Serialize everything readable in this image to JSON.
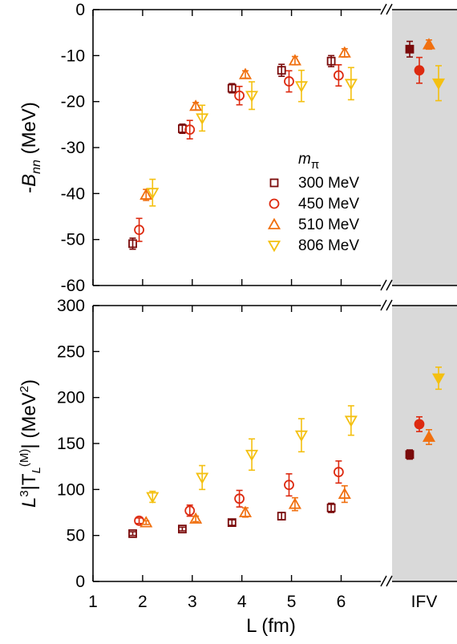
{
  "chart_data": [
    {
      "type": "scatter",
      "panel": "top",
      "ylabel": "-B_nn (MeV)",
      "ylabel_parts": {
        "prefix": "-",
        "base": "B",
        "sub": "nn",
        "suffix": " (MeV)"
      },
      "xlabel": "L (fm)",
      "xlim": [
        1,
        6.8
      ],
      "ylim": [
        -60,
        0
      ],
      "y_ticks": [
        0,
        -10,
        -20,
        -30,
        -40,
        -50,
        -60
      ],
      "x_ticks": [
        1,
        2,
        3,
        4,
        5,
        6
      ],
      "extra_category": "IFV",
      "legend_title": "m_π",
      "legend_title_parts": {
        "base": "m",
        "sub": "π"
      },
      "legend_placement": "center-right",
      "series": [
        {
          "name": "300 MeV",
          "marker": "square",
          "color": "#7a0a0a",
          "points": [
            {
              "x": 1.8,
              "y": -50.9,
              "err": 1.2
            },
            {
              "x": 2.8,
              "y": -25.9,
              "err": 1.0
            },
            {
              "x": 3.8,
              "y": -17.1,
              "err": 1.0
            },
            {
              "x": 4.8,
              "y": -13.2,
              "err": 1.3
            },
            {
              "x": 5.8,
              "y": -11.2,
              "err": 1.2
            }
          ],
          "ifv": {
            "y": -8.6,
            "err": 1.7
          }
        },
        {
          "name": "450 MeV",
          "marker": "circle",
          "color": "#dd2a10",
          "points": [
            {
              "x": 1.93,
              "y": -47.9,
              "err": 2.5
            },
            {
              "x": 2.95,
              "y": -26.1,
              "err": 2.0
            },
            {
              "x": 3.95,
              "y": -18.7,
              "err": 2.0
            },
            {
              "x": 4.95,
              "y": -15.6,
              "err": 2.3
            },
            {
              "x": 5.95,
              "y": -14.3,
              "err": 2.3
            }
          ],
          "ifv": {
            "y": -13.2,
            "err": 2.8
          }
        },
        {
          "name": "510 MeV",
          "marker": "triangle-up",
          "color": "#f07010",
          "points": [
            {
              "x": 2.07,
              "y": -40.3,
              "err": 1.2
            },
            {
              "x": 3.07,
              "y": -21.0,
              "err": 0.8
            },
            {
              "x": 4.07,
              "y": -14.1,
              "err": 0.8
            },
            {
              "x": 5.07,
              "y": -11.1,
              "err": 0.9
            },
            {
              "x": 6.07,
              "y": -9.4,
              "err": 0.9
            }
          ],
          "ifv": {
            "y": -7.6,
            "err": 1.0
          }
        },
        {
          "name": "806 MeV",
          "marker": "triangle-down",
          "color": "#f4c010",
          "points": [
            {
              "x": 2.2,
              "y": -39.8,
              "err": 2.9
            },
            {
              "x": 3.2,
              "y": -23.6,
              "err": 2.8
            },
            {
              "x": 4.2,
              "y": -18.7,
              "err": 3.0
            },
            {
              "x": 5.2,
              "y": -16.6,
              "err": 3.4
            },
            {
              "x": 6.2,
              "y": -16.1,
              "err": 3.5
            }
          ],
          "ifv": {
            "y": -16.0,
            "err": 3.8
          }
        }
      ]
    },
    {
      "type": "scatter",
      "panel": "bottom",
      "ylabel": "L^3|T_L^(M)| (MeV^2)",
      "ylabel_parts": {
        "a": "L",
        "a_sup": "3",
        "b": "|T",
        "b_sub": "L",
        "b_sup": "(M)",
        "c": "| (MeV",
        "c_sup": "2",
        "d": ")"
      },
      "xlabel": "L (fm)",
      "xlim": [
        1,
        6.8
      ],
      "ylim": [
        0,
        300
      ],
      "y_ticks": [
        0,
        50,
        100,
        150,
        200,
        250,
        300
      ],
      "x_ticks": [
        1,
        2,
        3,
        4,
        5,
        6
      ],
      "extra_category": "IFV",
      "series": [
        {
          "name": "300 MeV",
          "marker": "square",
          "color": "#7a0a0a",
          "points": [
            {
              "x": 1.8,
              "y": 52,
              "err": 2
            },
            {
              "x": 2.8,
              "y": 57,
              "err": 2
            },
            {
              "x": 3.8,
              "y": 64,
              "err": 3
            },
            {
              "x": 4.8,
              "y": 71,
              "err": 4
            },
            {
              "x": 5.8,
              "y": 80,
              "err": 5
            }
          ],
          "ifv": {
            "y": 138,
            "err": 5
          }
        },
        {
          "name": "450 MeV",
          "marker": "circle",
          "color": "#dd2a10",
          "points": [
            {
              "x": 1.93,
              "y": 66,
              "err": 3
            },
            {
              "x": 2.95,
              "y": 77,
              "err": 6
            },
            {
              "x": 3.95,
              "y": 90,
              "err": 9
            },
            {
              "x": 4.95,
              "y": 105,
              "err": 12
            },
            {
              "x": 5.95,
              "y": 119,
              "err": 12
            }
          ],
          "ifv": {
            "y": 171,
            "err": 8
          }
        },
        {
          "name": "510 MeV",
          "marker": "triangle-up",
          "color": "#f07010",
          "points": [
            {
              "x": 2.07,
              "y": 64,
              "err": 2
            },
            {
              "x": 3.07,
              "y": 68,
              "err": 3
            },
            {
              "x": 4.07,
              "y": 75,
              "err": 5
            },
            {
              "x": 5.07,
              "y": 84,
              "err": 7
            },
            {
              "x": 6.07,
              "y": 95,
              "err": 9
            }
          ],
          "ifv": {
            "y": 157,
            "err": 8
          }
        },
        {
          "name": "806 MeV",
          "marker": "triangle-down",
          "color": "#f4c010",
          "points": [
            {
              "x": 2.2,
              "y": 92,
              "err": 6
            },
            {
              "x": 3.2,
              "y": 113,
              "err": 13
            },
            {
              "x": 4.2,
              "y": 138,
              "err": 17
            },
            {
              "x": 5.2,
              "y": 159,
              "err": 18
            },
            {
              "x": 6.2,
              "y": 175,
              "err": 16
            }
          ],
          "ifv": {
            "y": 221,
            "err": 12
          }
        }
      ]
    }
  ]
}
